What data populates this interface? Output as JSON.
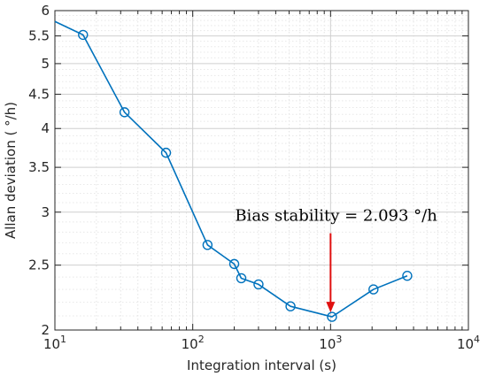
{
  "chart_data": {
    "type": "line",
    "xlabel": "Integration interval (s)",
    "ylabel": "Allan deviation ( °/h)",
    "x_scale": "log",
    "y_scale": "log",
    "xlim": [
      10,
      10000
    ],
    "ylim": [
      2,
      6
    ],
    "x_ticks": [
      {
        "value": 10,
        "base": "10",
        "exp": "1"
      },
      {
        "value": 100,
        "base": "10",
        "exp": "2"
      },
      {
        "value": 1000,
        "base": "10",
        "exp": "3"
      },
      {
        "value": 10000,
        "base": "10",
        "exp": "4"
      }
    ],
    "y_ticks": [
      {
        "value": 2,
        "label": "2"
      },
      {
        "value": 2.5,
        "label": "2.5"
      },
      {
        "value": 3,
        "label": "3"
      },
      {
        "value": 3.5,
        "label": "3.5"
      },
      {
        "value": 4,
        "label": "4"
      },
      {
        "value": 4.5,
        "label": "4.5"
      },
      {
        "value": 5,
        "label": "5"
      },
      {
        "value": 5.5,
        "label": "5.5"
      },
      {
        "value": 6,
        "label": "6"
      }
    ],
    "grid": true,
    "series": [
      {
        "color": "#0072BD",
        "marker": "circle",
        "line_start": {
          "x": 10,
          "y": 5.78
        },
        "points": [
          {
            "x": 16,
            "y": 5.52
          },
          {
            "x": 32,
            "y": 4.23
          },
          {
            "x": 64,
            "y": 3.68
          },
          {
            "x": 128,
            "y": 2.68
          },
          {
            "x": 200,
            "y": 2.51
          },
          {
            "x": 225,
            "y": 2.39
          },
          {
            "x": 300,
            "y": 2.34
          },
          {
            "x": 512,
            "y": 2.17
          },
          {
            "x": 1024,
            "y": 2.093
          },
          {
            "x": 2048,
            "y": 2.3
          },
          {
            "x": 3600,
            "y": 2.41
          }
        ]
      }
    ],
    "annotations": [
      {
        "text": "Bias stability = 2.093 °/h",
        "arrow_color": "#e01010",
        "arrow_from": {
          "x": 1000,
          "y": 2.79
        },
        "arrow_to": {
          "x": 1000,
          "y": 2.125
        }
      }
    ]
  }
}
